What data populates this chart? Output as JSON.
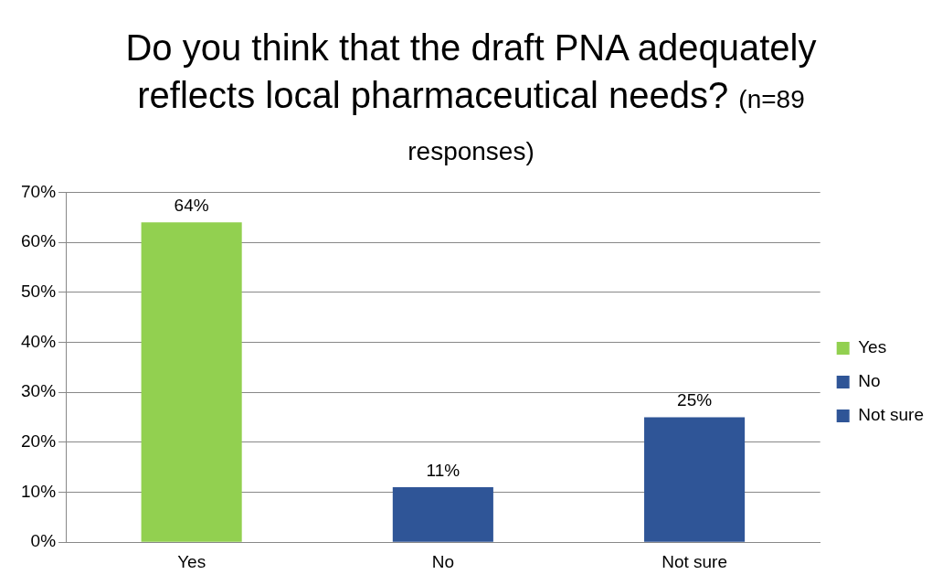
{
  "chart_data": {
    "type": "bar",
    "title": "Do you think that the draft PNA adequately reflects local pharmaceutical needs?",
    "subtitle": "(n=89 responses)",
    "categories": [
      "Yes",
      "No",
      "Not sure"
    ],
    "series": [
      {
        "name": "Yes",
        "color": "#92d050",
        "values": [
          64,
          null,
          null
        ],
        "value_labels": [
          "64%",
          null,
          null
        ]
      },
      {
        "name": "No",
        "color": "#2f5597",
        "values": [
          null,
          11,
          null
        ],
        "value_labels": [
          null,
          "11%",
          null
        ]
      },
      {
        "name": "Not sure",
        "color": "#2f5597",
        "values": [
          null,
          null,
          25
        ],
        "value_labels": [
          null,
          null,
          "25%"
        ]
      }
    ],
    "ylim": [
      0,
      70
    ],
    "yticks": [
      {
        "value": 0,
        "label": "0%"
      },
      {
        "value": 10,
        "label": "10%"
      },
      {
        "value": 20,
        "label": "20%"
      },
      {
        "value": 30,
        "label": "30%"
      },
      {
        "value": 40,
        "label": "40%"
      },
      {
        "value": 50,
        "label": "50%"
      },
      {
        "value": 60,
        "label": "60%"
      },
      {
        "value": 70,
        "label": "70%"
      }
    ],
    "grid": "y",
    "legend": "right"
  }
}
